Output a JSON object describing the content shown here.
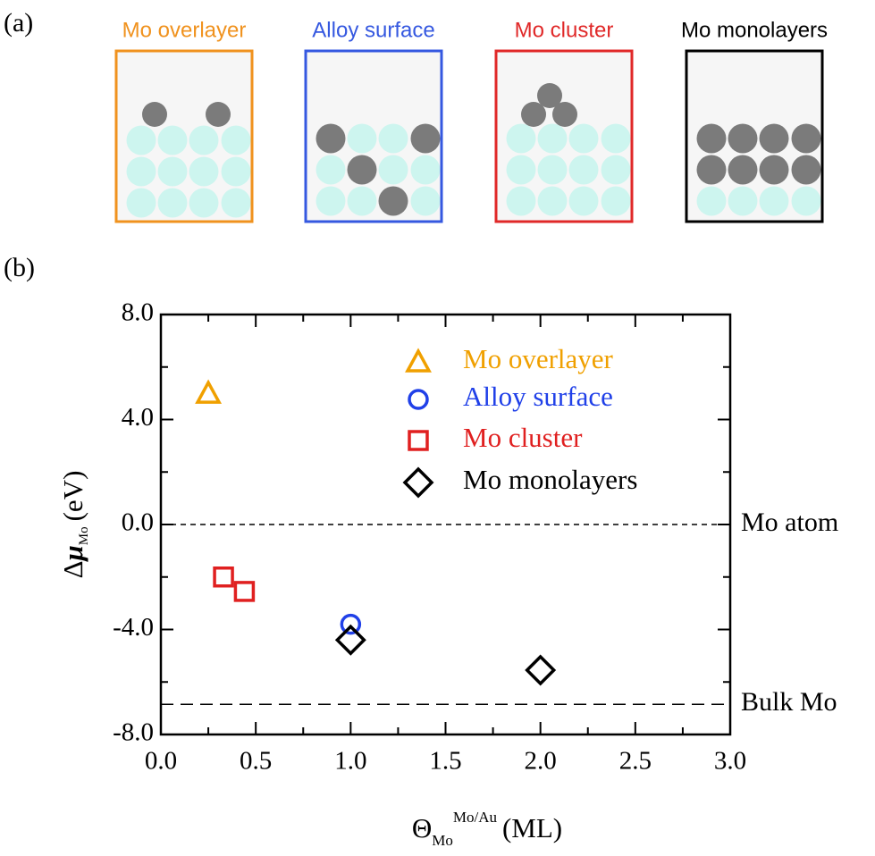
{
  "panel_a": {
    "label": "(a)",
    "schematics": [
      {
        "title": "Mo overlayer",
        "color": "#f0921e"
      },
      {
        "title": "Alloy surface",
        "color": "#3558e0"
      },
      {
        "title": "Mo cluster",
        "color": "#e02828"
      },
      {
        "title": "Mo monolayers",
        "color": "#000000"
      }
    ]
  },
  "chart_data": {
    "type": "scatter",
    "panel_label": "(b)",
    "xlabel": {
      "symbol": "Θ",
      "sub": "Mo",
      "sup": "Mo/Au",
      "unit": "(ML)"
    },
    "ylabel": {
      "symbol": "Δ",
      "mu": "μ",
      "sub": "Mo",
      "unit": "(eV)"
    },
    "xlim": [
      0,
      3
    ],
    "ylim": [
      -8,
      8
    ],
    "xticks": [
      {
        "value": 0,
        "label": "0.0"
      },
      {
        "value": 0.5,
        "label": "0.5"
      },
      {
        "value": 1,
        "label": "1.0"
      },
      {
        "value": 1.5,
        "label": "1.5"
      },
      {
        "value": 2,
        "label": "2.0"
      },
      {
        "value": 2.5,
        "label": "2.5"
      },
      {
        "value": 3,
        "label": "3.0"
      }
    ],
    "yticks": [
      {
        "value": -8,
        "label": "-8.0"
      },
      {
        "value": -4,
        "label": "-4.0"
      },
      {
        "value": 0,
        "label": "0.0"
      },
      {
        "value": 4,
        "label": "4.0"
      },
      {
        "value": 8,
        "label": "8.0"
      }
    ],
    "yminorticks": [
      -6,
      -2,
      2,
      6
    ],
    "xminorticks": [
      0.25,
      0.75,
      1.25,
      1.75,
      2.25,
      2.75
    ],
    "hlines": [
      {
        "value": 0,
        "label": "Mo atom",
        "dash": "6,5"
      },
      {
        "value": -6.85,
        "label": "Bulk Mo",
        "dash": "14,8"
      }
    ],
    "legend": "upper right",
    "series": [
      {
        "name": "Mo overlayer",
        "color": "#f0a000",
        "marker": "triangle",
        "x": [
          0.25
        ],
        "values": [
          5.0
        ]
      },
      {
        "name": "Alloy surface",
        "color": "#2040e8",
        "marker": "circle",
        "x": [
          1.0
        ],
        "values": [
          -3.8
        ]
      },
      {
        "name": "Mo cluster",
        "color": "#e02020",
        "marker": "square",
        "x": [
          0.33,
          0.44
        ],
        "values": [
          -2.0,
          -2.55
        ]
      },
      {
        "name": "Mo monolayers",
        "color": "#000000",
        "marker": "diamond",
        "x": [
          1.0,
          2.0
        ],
        "values": [
          -4.4,
          -5.55
        ]
      }
    ]
  }
}
